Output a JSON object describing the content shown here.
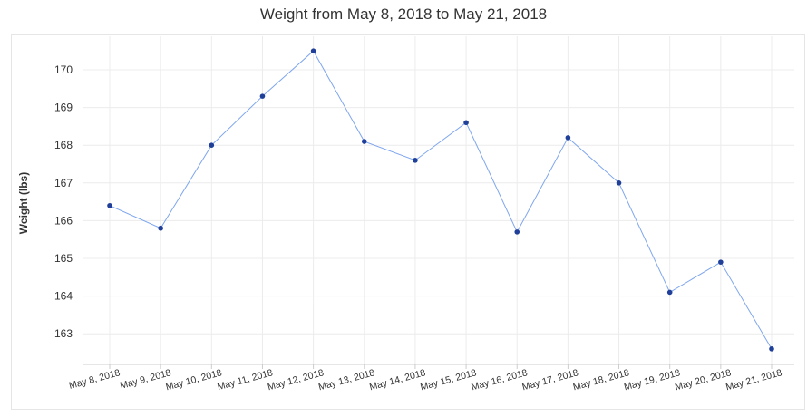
{
  "chart_data": {
    "type": "line",
    "title": "Weight from May 8, 2018 to May 21, 2018",
    "xlabel": "",
    "ylabel": "Weight (lbs)",
    "categories": [
      "May 8, 2018",
      "May 9, 2018",
      "May 10, 2018",
      "May 11, 2018",
      "May 12, 2018",
      "May 13, 2018",
      "May 14, 2018",
      "May 15, 2018",
      "May 16, 2018",
      "May 17, 2018",
      "May 18, 2018",
      "May 19, 2018",
      "May 20, 2018",
      "May 21, 2018"
    ],
    "series": [
      {
        "name": "Weight",
        "values": [
          166.4,
          165.8,
          168.0,
          169.3,
          170.5,
          168.1,
          167.6,
          168.6,
          165.7,
          168.2,
          167.0,
          164.1,
          164.9,
          162.6
        ]
      }
    ],
    "yticks": [
      163,
      164,
      165,
      166,
      167,
      168,
      169,
      170
    ],
    "ylim": [
      162.2,
      170.9
    ],
    "grid": true,
    "line_color": "#7fa6ee",
    "marker_color": "#1f3f99",
    "grid_color": "#ececec"
  }
}
